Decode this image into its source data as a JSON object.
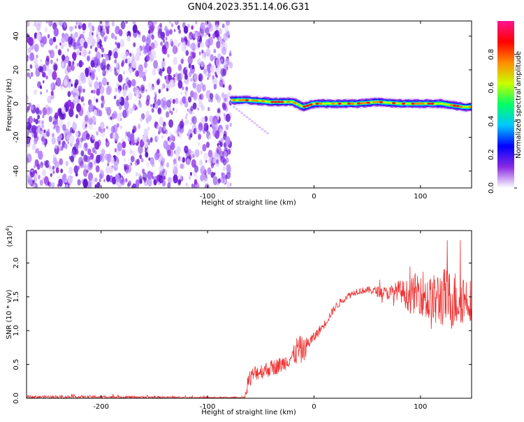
{
  "title": "GN04.2023.351.14.06.G31",
  "colorbar": {
    "label": "Normalized spectral amplitude",
    "ticks": [
      "0.0",
      "0.2",
      "0.4",
      "0.6",
      "0.8"
    ],
    "colors": [
      "#ffffff",
      "#8a2be2",
      "#0000ff",
      "#00c8ff",
      "#00ff66",
      "#c8ff00",
      "#ff8c00",
      "#ff0000",
      "#ff1493"
    ]
  },
  "chart_data": [
    {
      "type": "heatmap",
      "xlabel": "Height of straight line (km)",
      "ylabel": "Frequency (Hz)",
      "xlim": [
        -270,
        148
      ],
      "ylim": [
        -50,
        49
      ],
      "xticks": [
        -200,
        -100,
        0,
        100
      ],
      "xtick_labels": [
        "-200",
        "-100",
        "0",
        "100"
      ],
      "yticks": [
        -40,
        -20,
        0,
        20,
        40
      ],
      "ytick_labels": [
        "-40",
        "-20",
        "0",
        "20",
        "40"
      ],
      "noise_region_x": [
        -270,
        -78
      ],
      "noise_amplitude_range": [
        0.0,
        0.3
      ],
      "signal_trace": {
        "x": [
          -78,
          -60,
          -40,
          -20,
          -10,
          0,
          20,
          40,
          60,
          80,
          100,
          120,
          140,
          148
        ],
        "frequency": [
          2,
          2,
          1,
          1,
          -2,
          0,
          0,
          0,
          1,
          0,
          0,
          0,
          -2,
          -2
        ],
        "amplitude": 0.9
      }
    },
    {
      "type": "line",
      "xlabel": "Height of straight line (km)",
      "ylabel": "SNR (10 * v/v)",
      "y_multiplier_label": "(x10",
      "y_multiplier_exp": "4",
      "y_multiplier_close": ")",
      "xlim": [
        -270,
        148
      ],
      "ylim": [
        0,
        2.48
      ],
      "xticks": [
        -200,
        -100,
        0,
        100
      ],
      "xtick_labels": [
        "-200",
        "-100",
        "0",
        "100"
      ],
      "yticks": [
        0.0,
        0.5,
        1.0,
        1.5,
        2.0
      ],
      "ytick_labels": [
        "0.0",
        "0.5",
        "1.0",
        "1.5",
        "2.0"
      ],
      "color": "#ee3333",
      "x": [
        -270,
        -200,
        -100,
        -65,
        -62,
        -55,
        -45,
        -30,
        -20,
        -15,
        -10,
        -5,
        0,
        10,
        20,
        30,
        40,
        50,
        60,
        70,
        80,
        90,
        100,
        110,
        120,
        130,
        140,
        148
      ],
      "y": [
        0.02,
        0.02,
        0.01,
        0.01,
        0.25,
        0.38,
        0.42,
        0.5,
        0.62,
        0.72,
        0.7,
        0.82,
        0.9,
        1.1,
        1.35,
        1.5,
        1.58,
        1.6,
        1.58,
        1.55,
        1.6,
        1.5,
        1.6,
        1.4,
        1.5,
        1.45,
        1.5,
        1.45
      ],
      "noise_amplitude": [
        0.02,
        0.02,
        0.01,
        0.01,
        0.15,
        0.12,
        0.12,
        0.12,
        0.12,
        0.25,
        0.18,
        0.1,
        0.08,
        0.06,
        0.06,
        0.05,
        0.05,
        0.05,
        0.08,
        0.1,
        0.15,
        0.25,
        0.35,
        0.4,
        0.45,
        0.45,
        0.4,
        0.3
      ]
    }
  ]
}
